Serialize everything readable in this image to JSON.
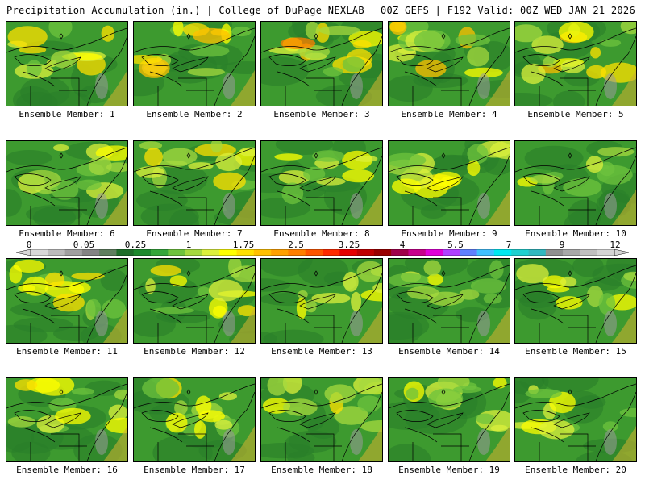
{
  "header": {
    "title": "Precipitation Accumulation (in.) | College of DuPage NEXLAB",
    "run_info": "00Z GEFS | F192 Valid: 00Z WED JAN 21 2026"
  },
  "panels": [
    {
      "label": "Ensemble Member: 1",
      "wetness": 0.45
    },
    {
      "label": "Ensemble Member: 2",
      "wetness": 0.55
    },
    {
      "label": "Ensemble Member: 3",
      "wetness": 0.7
    },
    {
      "label": "Ensemble Member: 4",
      "wetness": 0.6
    },
    {
      "label": "Ensemble Member: 5",
      "wetness": 0.65
    },
    {
      "label": "Ensemble Member: 6",
      "wetness": 0.4
    },
    {
      "label": "Ensemble Member: 7",
      "wetness": 0.55
    },
    {
      "label": "Ensemble Member: 8",
      "wetness": 0.25
    },
    {
      "label": "Ensemble Member: 9",
      "wetness": 0.5
    },
    {
      "label": "Ensemble Member: 10",
      "wetness": 0.25
    },
    {
      "label": "Ensemble Member: 11",
      "wetness": 0.5
    },
    {
      "label": "Ensemble Member: 12",
      "wetness": 0.45
    },
    {
      "label": "Ensemble Member: 13",
      "wetness": 0.35
    },
    {
      "label": "Ensemble Member: 14",
      "wetness": 0.3
    },
    {
      "label": "Ensemble Member: 15",
      "wetness": 0.3
    },
    {
      "label": "Ensemble Member: 16",
      "wetness": 0.45
    },
    {
      "label": "Ensemble Member: 17",
      "wetness": 0.55
    },
    {
      "label": "Ensemble Member: 18",
      "wetness": 0.4
    },
    {
      "label": "Ensemble Member: 19",
      "wetness": 0.4
    },
    {
      "label": "Ensemble Member: 20",
      "wetness": 0.3
    }
  ],
  "colorbar": {
    "ticks": [
      "0",
      "0.05",
      "0.25",
      "1",
      "1.75",
      "2.5",
      "3.25",
      "4",
      "5.5",
      "7",
      "9",
      "12"
    ],
    "colors": [
      "#d8d8d8",
      "#bcbcbc",
      "#a0a0a0",
      "#848484",
      "#5f7f5f",
      "#1f6e2a",
      "#1d8a2d",
      "#34a63a",
      "#6ec33d",
      "#a6d93f",
      "#dcf03c",
      "#ffff00",
      "#ffe000",
      "#ffc000",
      "#ffa000",
      "#ff7f00",
      "#ff5500",
      "#ff2a00",
      "#e60000",
      "#c00000",
      "#9a0000",
      "#a0004a",
      "#c8008c",
      "#e000d8",
      "#b040ff",
      "#6080ff",
      "#40c0ff",
      "#00e8f0",
      "#20d0d0",
      "#30b8c0",
      "#909090",
      "#a8a8a8",
      "#c0c0c0",
      "#d4d4d4"
    ]
  }
}
